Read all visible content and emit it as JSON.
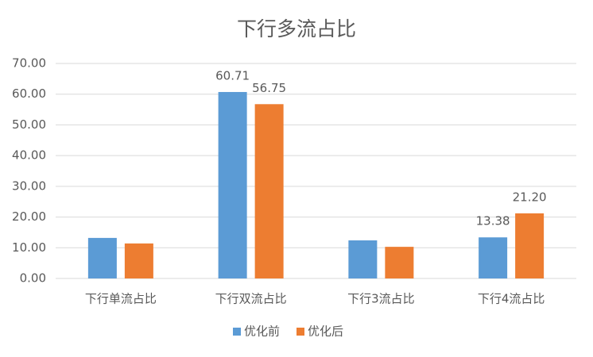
{
  "chart_data": {
    "type": "bar",
    "title": "下行多流占比",
    "categories": [
      "下行单流占比",
      "下行双流占比",
      "下行3流占比",
      "下行4流占比"
    ],
    "series": [
      {
        "name": "优化前",
        "color": "#5b9bd5",
        "values": [
          13.2,
          60.71,
          12.4,
          13.38
        ],
        "value_labels": [
          null,
          "60.71",
          null,
          "13.38"
        ]
      },
      {
        "name": "优化后",
        "color": "#ed7d31",
        "values": [
          11.4,
          56.75,
          10.3,
          21.2
        ],
        "value_labels": [
          null,
          "56.75",
          null,
          "21.20"
        ]
      }
    ],
    "ylim": [
      0,
      70
    ],
    "yticks": [
      {
        "value": 0,
        "label": "0.00"
      },
      {
        "value": 10,
        "label": "10.00"
      },
      {
        "value": 20,
        "label": "20.00"
      },
      {
        "value": 30,
        "label": "30.00"
      },
      {
        "value": 40,
        "label": "40.00"
      },
      {
        "value": 50,
        "label": "50.00"
      },
      {
        "value": 60,
        "label": "60.00"
      },
      {
        "value": 70,
        "label": "70.00"
      }
    ],
    "grid": true,
    "legend": "bottom"
  }
}
